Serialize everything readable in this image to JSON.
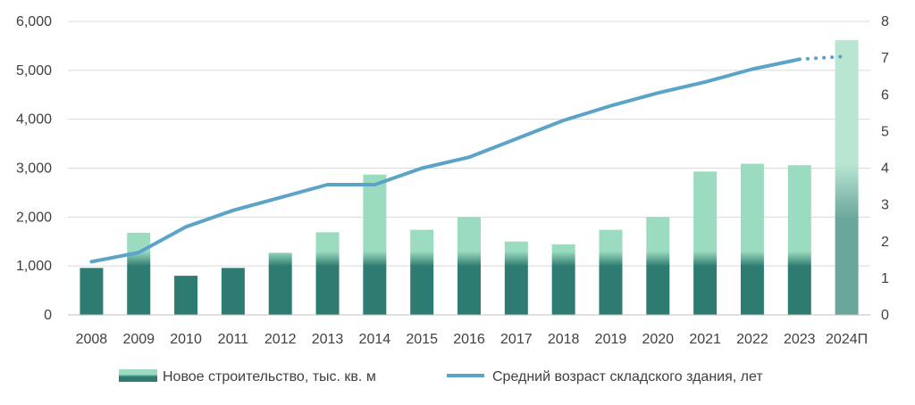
{
  "chart_data": {
    "type": "bar",
    "categories": [
      "2008",
      "2009",
      "2010",
      "2011",
      "2012",
      "2013",
      "2014",
      "2015",
      "2016",
      "2017",
      "2018",
      "2019",
      "2020",
      "2021",
      "2022",
      "2023",
      "2024П"
    ],
    "series": [
      {
        "name": "Новое строительство, тыс. кв. м",
        "type": "bar",
        "axis": "left",
        "values": [
          960,
          1680,
          800,
          960,
          1270,
          1690,
          2870,
          1740,
          2000,
          1500,
          1440,
          1740,
          2000,
          2930,
          3090,
          3060,
          5620
        ]
      },
      {
        "name": "Средний возраст складского здания, лет",
        "type": "line",
        "axis": "right",
        "values": [
          1.45,
          1.7,
          2.4,
          2.85,
          3.2,
          3.55,
          3.55,
          4.0,
          4.3,
          4.8,
          5.3,
          5.7,
          6.05,
          6.35,
          6.7,
          6.97,
          7.05
        ],
        "dotted_from_index": 15
      }
    ],
    "y_left": {
      "ylim": [
        0,
        6000
      ],
      "ticks": [
        "0",
        "1,000",
        "2,000",
        "3,000",
        "4,000",
        "5,000",
        "6,000"
      ],
      "tick_values": [
        0,
        1000,
        2000,
        3000,
        4000,
        5000,
        6000
      ]
    },
    "y_right": {
      "ylim": [
        0,
        8
      ],
      "ticks": [
        "0",
        "1",
        "2",
        "3",
        "4",
        "5",
        "6",
        "7",
        "8"
      ],
      "tick_values": [
        0,
        1,
        2,
        3,
        4,
        5,
        6,
        7,
        8
      ]
    },
    "grid": true,
    "legend_position": "bottom",
    "colors": {
      "bar_light": "#9bdcc0",
      "bar_dark": "#2e7b72",
      "bar_forecast_light": "#b8e6d3",
      "bar_forecast_dark": "#6ba69d",
      "line": "#5ba3c9",
      "grid": "#d9d9d9",
      "axis": "#bfbfbf"
    }
  }
}
